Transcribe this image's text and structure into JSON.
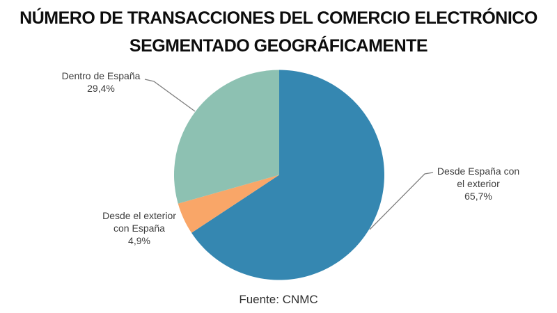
{
  "chart_data": {
    "type": "pie",
    "title": "NÚMERO DE TRANSACCIONES DEL COMERCIO ELECTRÓNICO SEGMENTADO GEOGRÁFICAMENTE",
    "source": "Fuente: CNMC",
    "start_angle_deg": 0,
    "direction": "clockwise",
    "legend": "none",
    "slices": [
      {
        "label": "Desde España con el exterior",
        "value": 65.7,
        "value_display": "65,7%",
        "color": "#3587B1"
      },
      {
        "label": "Desde el exterior con España",
        "value": 4.9,
        "value_display": "4,9%",
        "color": "#F9A668"
      },
      {
        "label": "Dentro de España",
        "value": 29.4,
        "value_display": "29,4%",
        "color": "#8DC1B2"
      }
    ],
    "leader_line_color": "#7F7F7F",
    "label_text_color": "#3D3D3D",
    "title_color": "#0D0D0D",
    "background_color": "#FFFFFF"
  }
}
